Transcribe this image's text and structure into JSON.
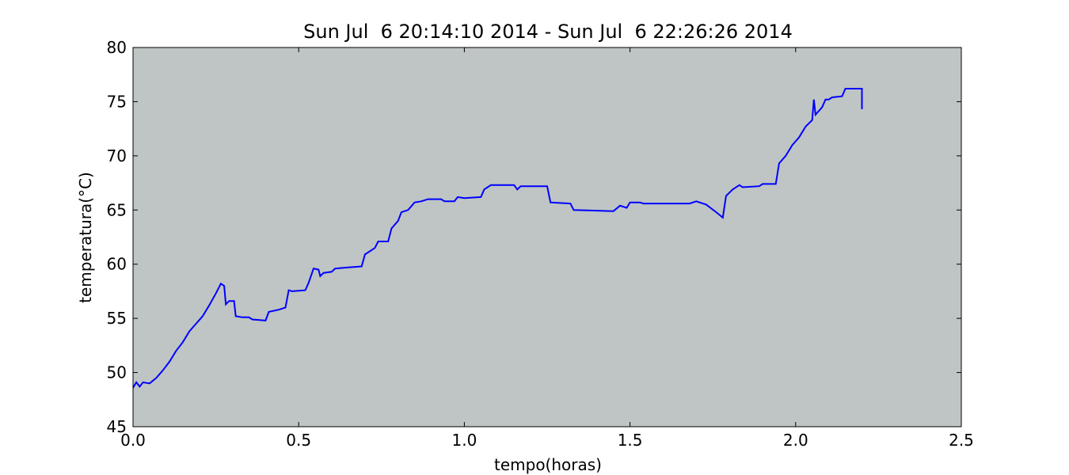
{
  "chart_data": {
    "type": "line",
    "title": "Sun Jul  6 20:14:10 2014 - Sun Jul  6 22:26:26 2014",
    "x_label": "tempo(horas)",
    "y_label": "temperatura(°C)",
    "xlim": [
      0,
      2.5
    ],
    "xticks": [
      {
        "value": 0,
        "label": "0.0"
      },
      0.5,
      {
        "value": 1,
        "label": "1.0"
      },
      1.5,
      {
        "value": 2,
        "label": "2.0"
      },
      2.5
    ],
    "ylim": [
      45,
      80
    ],
    "yticks": [
      45,
      50,
      55,
      60,
      65,
      70,
      75,
      80
    ],
    "background": "#bfc5c4",
    "series": [
      {
        "color": "#0000ff",
        "x": [
          0.0,
          0.01,
          0.02,
          0.03,
          0.05,
          0.07,
          0.09,
          0.11,
          0.13,
          0.15,
          0.17,
          0.19,
          0.21,
          0.23,
          0.25,
          0.265,
          0.275,
          0.28,
          0.29,
          0.305,
          0.31,
          0.33,
          0.35,
          0.36,
          0.4,
          0.41,
          0.44,
          0.46,
          0.47,
          0.48,
          0.52,
          0.53,
          0.545,
          0.56,
          0.565,
          0.575,
          0.6,
          0.61,
          0.65,
          0.69,
          0.7,
          0.73,
          0.74,
          0.77,
          0.78,
          0.8,
          0.81,
          0.83,
          0.85,
          0.87,
          0.89,
          0.93,
          0.94,
          0.97,
          0.98,
          1.0,
          1.05,
          1.06,
          1.08,
          1.15,
          1.16,
          1.17,
          1.25,
          1.26,
          1.32,
          1.33,
          1.45,
          1.47,
          1.49,
          1.5,
          1.53,
          1.54,
          1.68,
          1.7,
          1.73,
          1.76,
          1.78,
          1.79,
          1.81,
          1.83,
          1.84,
          1.89,
          1.9,
          1.94,
          1.95,
          1.97,
          1.99,
          2.01,
          2.03,
          2.05,
          2.055,
          2.06,
          2.08,
          2.09,
          2.1,
          2.11,
          2.14,
          2.15,
          2.2,
          2.2
        ],
        "values": [
          48.6,
          49.1,
          48.7,
          49.1,
          49.0,
          49.5,
          50.2,
          51.0,
          52.0,
          52.8,
          53.8,
          54.5,
          55.2,
          56.2,
          57.3,
          58.2,
          58.0,
          56.3,
          56.6,
          56.6,
          55.2,
          55.1,
          55.1,
          54.9,
          54.8,
          55.6,
          55.8,
          56.0,
          57.6,
          57.5,
          57.6,
          58.3,
          59.6,
          59.5,
          58.9,
          59.2,
          59.3,
          59.6,
          59.7,
          59.8,
          60.9,
          61.5,
          62.1,
          62.1,
          63.3,
          64.0,
          64.8,
          65.0,
          65.7,
          65.8,
          66.0,
          66.0,
          65.8,
          65.8,
          66.2,
          66.1,
          66.2,
          66.9,
          67.3,
          67.3,
          66.9,
          67.2,
          67.2,
          65.7,
          65.6,
          65.0,
          64.9,
          65.4,
          65.2,
          65.7,
          65.7,
          65.6,
          65.6,
          65.8,
          65.5,
          64.8,
          64.3,
          66.3,
          66.9,
          67.3,
          67.1,
          67.2,
          67.4,
          67.4,
          69.3,
          70.0,
          71.0,
          71.7,
          72.7,
          73.3,
          75.2,
          73.8,
          74.5,
          75.2,
          75.2,
          75.4,
          75.5,
          76.2,
          76.2,
          74.3
        ]
      }
    ]
  }
}
